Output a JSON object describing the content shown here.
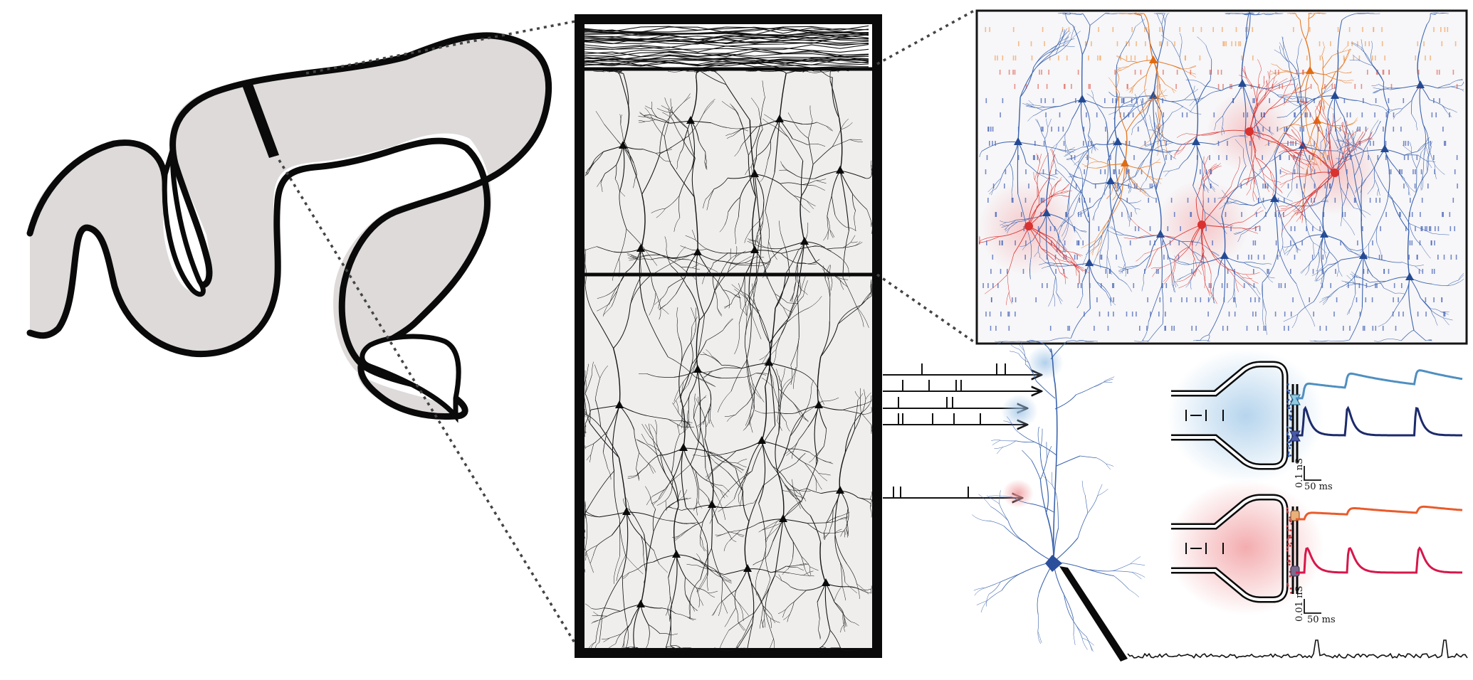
{
  "colors": {
    "tissue": "#dedada",
    "outline": "#0a0a0a",
    "column_bg": "#efeeed",
    "excitatory": "#2c4f9b",
    "excitatory_light": "#5b86c4",
    "inhibitory": "#d9322f",
    "inhibitory_orange": "#e5771f",
    "exc_trace_top": "#4f8fc0",
    "exc_trace_bottom": "#1d2a6b",
    "inh_trace_top": "#ea5b2b",
    "inh_trace_bottom": "#d6174a",
    "exc_halo": "#a9cdea",
    "inh_halo": "#f2a3a6"
  },
  "icons": [
    "brain-gyri-icon",
    "cortical-column-icon",
    "neuron-icon",
    "synapse-icon"
  ],
  "scale_bars": {
    "excitatory": {
      "amplitude": "0.1 nS",
      "time": "50 ms"
    },
    "inhibitory": {
      "amplitude": "0.01 nS",
      "time": "50 ms"
    }
  }
}
